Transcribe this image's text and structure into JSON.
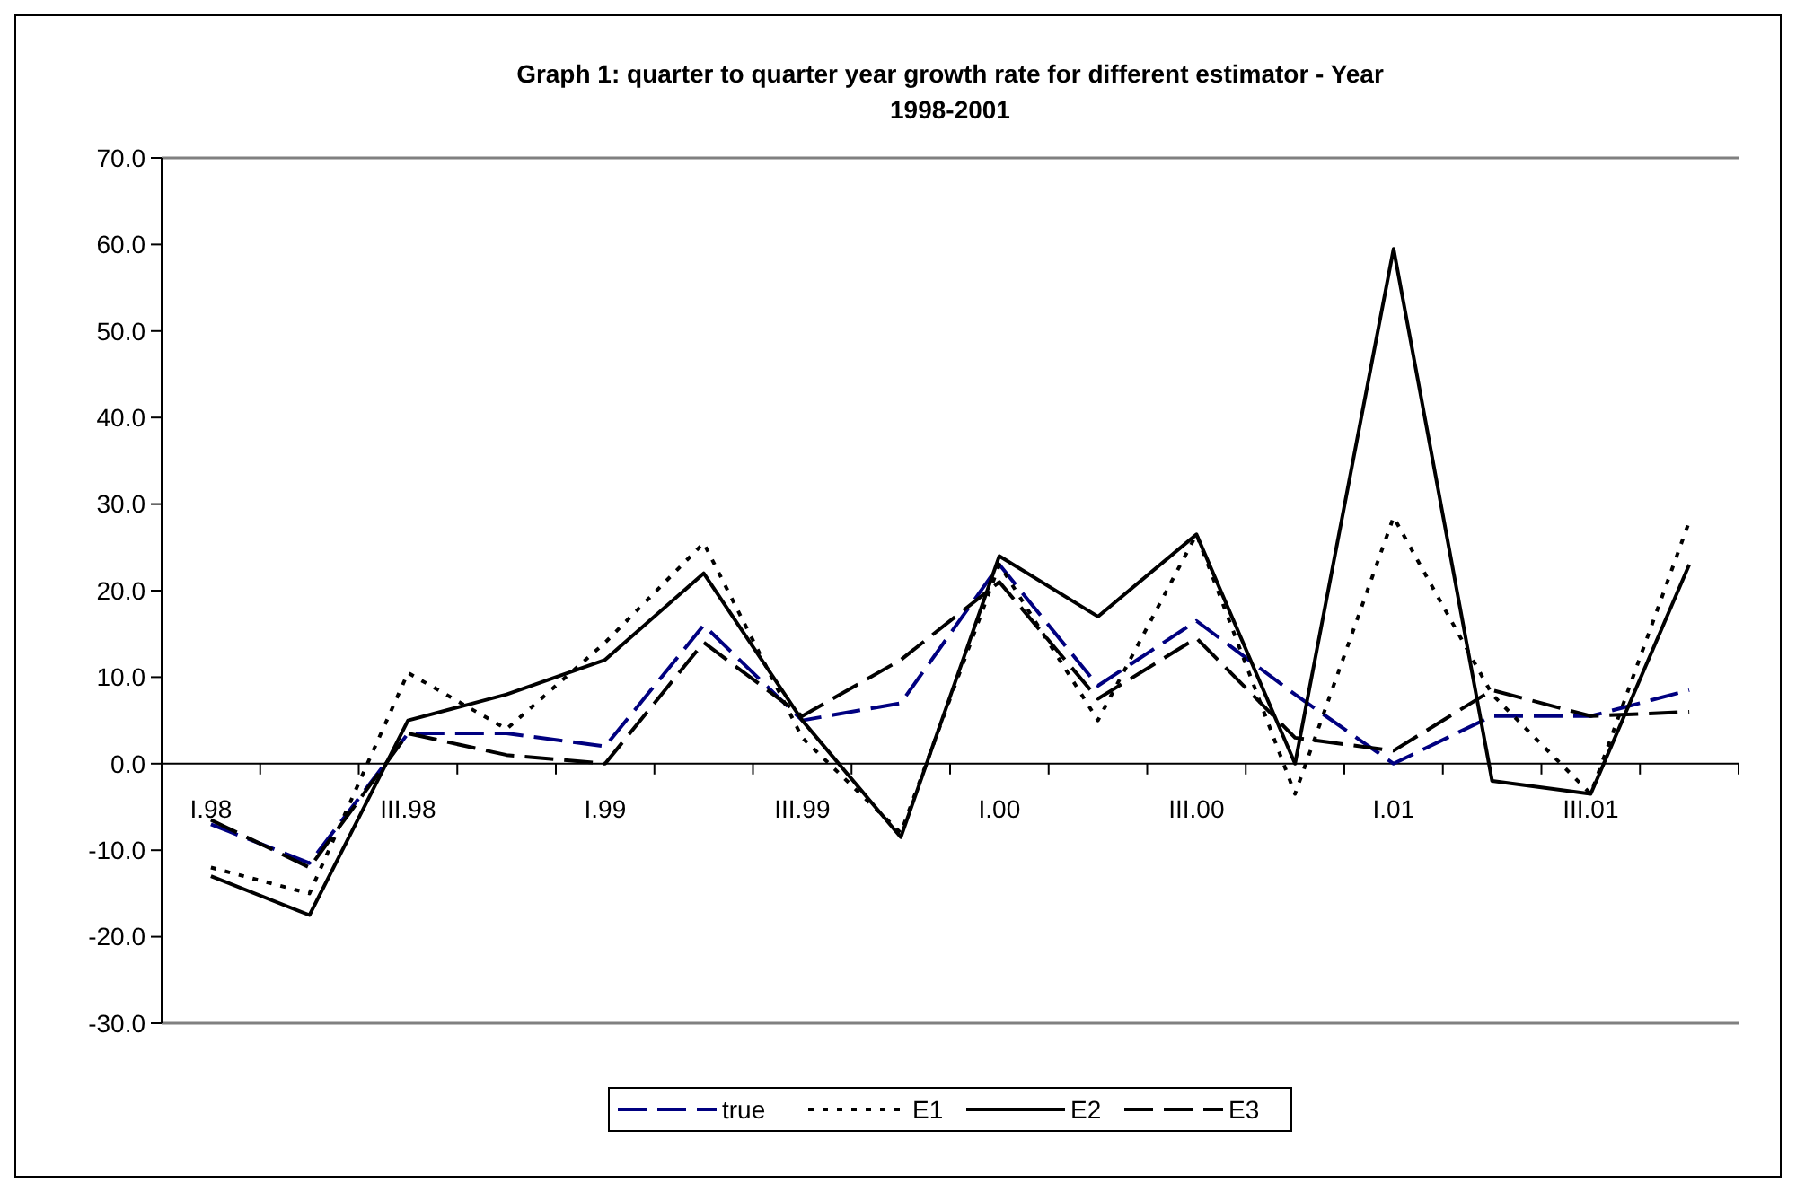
{
  "chart_data": {
    "type": "line",
    "title": "Graph 1: quarter to quarter year growth rate for different estimator - Year 1998-2001",
    "categories": [
      "I.98",
      null,
      "III.98",
      null,
      "I.99",
      null,
      "III.99",
      null,
      "I.00",
      null,
      "III.00",
      null,
      "I.01",
      null,
      "III.01",
      null
    ],
    "series": [
      {
        "name": "true",
        "color": "#000080",
        "line_style": "dashed",
        "values": [
          -7,
          -11.5,
          3.5,
          3.5,
          2,
          16,
          5,
          7,
          23,
          9,
          16.5,
          8,
          0,
          5.5,
          5.5,
          8.5
        ]
      },
      {
        "name": "E1",
        "color": "#000000",
        "line_style": "dotted",
        "values": [
          -12,
          -15,
          10.5,
          4,
          14,
          25.5,
          3,
          -8,
          23,
          5,
          26.5,
          -3.5,
          28.5,
          8,
          -3.5,
          28
        ]
      },
      {
        "name": "E2",
        "color": "#000000",
        "line_style": "solid",
        "values": [
          -13,
          -17.5,
          5,
          8,
          12,
          22,
          5,
          -8.5,
          24,
          17,
          26.5,
          0,
          59.5,
          -2,
          -3.5,
          23
        ]
      },
      {
        "name": "E3",
        "color": "#000000",
        "line_style": "dashed",
        "values": [
          -6.5,
          -12,
          3.5,
          1,
          0,
          14,
          5.5,
          12,
          21,
          7.5,
          14.5,
          3,
          1.5,
          8.5,
          5.5,
          6
        ]
      }
    ],
    "ylim": [
      -30,
      70
    ],
    "yticks": [
      {
        "value": -30,
        "label": "-30.0"
      },
      {
        "value": -20,
        "label": "-20.0"
      },
      {
        "value": -10,
        "label": "-10.0"
      },
      {
        "value": 0,
        "label": "0.0"
      },
      {
        "value": 10,
        "label": "10.0"
      },
      {
        "value": 20,
        "label": "20.0"
      },
      {
        "value": 30,
        "label": "30.0"
      },
      {
        "value": 40,
        "label": "40.0"
      },
      {
        "value": 50,
        "label": "50.0"
      },
      {
        "value": 60,
        "label": "60.0"
      },
      {
        "value": 70,
        "label": "70.0"
      }
    ],
    "grid": false,
    "legend": "bottom",
    "marker": "none"
  }
}
